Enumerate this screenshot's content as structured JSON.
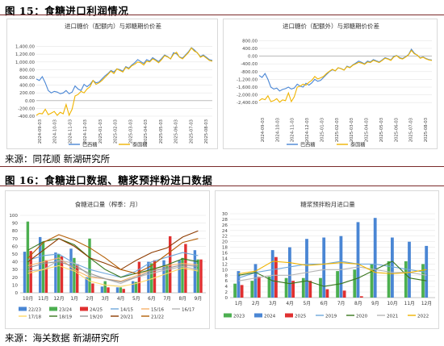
{
  "fig15": {
    "title": "图 15：食糖进口利润情况",
    "source": "来源：同花顺 新湖研究所"
  },
  "fig16": {
    "title": "图 16：食糖进口数据、糖浆预拌粉进口数据",
    "source": "来源：海关数据 新湖研究所"
  },
  "colors": {
    "rule": "#7a2a2a",
    "blue": "#4a86d4",
    "gold": "#f0b400",
    "grid": "#e6e6e6"
  },
  "chart_data": [
    {
      "id": "c1",
      "type": "line",
      "title": "进口糖价（配额内）与郑糖期价价差",
      "yticks": [
        "1,400.00",
        "1,200.00",
        "1,000.00",
        "800.00",
        "600.00",
        "400.00",
        "200.00",
        "0.00",
        "-200.00",
        "-400.00"
      ],
      "ylim": [
        -400,
        1600
      ],
      "xticks": [
        "2024-09-03",
        "2024-10-03",
        "2024-11-03",
        "2024-12-03",
        "2025-01-03",
        "2025-02-03",
        "2025-03-03",
        "2025-04-03",
        "2025-05-03",
        "2025-06-03",
        "2025-07-03",
        "2025-08-03"
      ],
      "series": [
        {
          "name": "巴西糖",
          "color": "#4a86d4",
          "values": [
            560,
            520,
            620,
            460,
            260,
            200,
            240,
            220,
            180,
            200,
            260,
            180,
            220,
            380,
            300,
            260,
            420,
            360,
            420,
            520,
            460,
            480,
            560,
            640,
            700,
            780,
            740,
            820,
            800,
            760,
            880,
            840,
            920,
            980,
            1060,
            1010,
            960,
            1060,
            1020,
            1110,
            1060,
            1010,
            1090,
            1180,
            1140,
            1080,
            1240,
            1210,
            1130,
            1100,
            1180,
            1260,
            1370,
            1310,
            1230,
            1140,
            1180,
            1120,
            1060,
            1040
          ]
        },
        {
          "name": "泰国糖",
          "color": "#f0b400",
          "values": [
            -380,
            -330,
            -340,
            -220,
            -360,
            -320,
            -280,
            -380,
            -300,
            -340,
            -100,
            -380,
            -220,
            120,
            160,
            240,
            200,
            300,
            360,
            520,
            420,
            460,
            520,
            600,
            680,
            760,
            700,
            820,
            780,
            740,
            860,
            820,
            900,
            940,
            1000,
            980,
            920,
            1020,
            1000,
            1080,
            1040,
            980,
            1060,
            1160,
            1130,
            1080,
            1200,
            1250,
            1120,
            1080,
            1160,
            1240,
            1360,
            1280,
            1240,
            1120,
            1160,
            1100,
            1040,
            1020
          ]
        }
      ]
    },
    {
      "id": "c2",
      "type": "line",
      "title": "进口糖价（配额外）与郑糖期价价差",
      "yticks": [
        "800.00",
        "400.00",
        "0.00",
        "-400.00",
        "-800.00",
        "-1,200.00",
        "-1,600.00",
        "-2,000.00",
        "-2,400.00"
      ],
      "ylim": [
        -2600,
        900
      ],
      "xticks": [
        "2024-09-03",
        "2024-10-03",
        "2024-11-03",
        "2024-12-03",
        "2025-01-03",
        "2025-02-03",
        "2025-03-03",
        "2025-04-03",
        "2025-05-03",
        "2025-06-03",
        "2025-07-03",
        "2025-08-03"
      ],
      "series": [
        {
          "name": "巴西糖",
          "color": "#4a86d4",
          "values": [
            -1000,
            -1100,
            -900,
            -1200,
            -1600,
            -1700,
            -1650,
            -1800,
            -1720,
            -1680,
            -1600,
            -1700,
            -1650,
            -1450,
            -1550,
            -1600,
            -1400,
            -1500,
            -1380,
            -1200,
            -1300,
            -1250,
            -1100,
            -950,
            -800,
            -700,
            -760,
            -600,
            -640,
            -720,
            -520,
            -580,
            -450,
            -360,
            -260,
            -320,
            -400,
            -260,
            -300,
            -180,
            -240,
            -300,
            -200,
            -80,
            -130,
            -200,
            -10,
            30,
            -80,
            -120,
            -30,
            80,
            360,
            160,
            40,
            -90,
            -40,
            -120,
            -180,
            -200
          ]
        },
        {
          "name": "泰国糖",
          "color": "#f0b400",
          "values": [
            -2300,
            -2200,
            -2250,
            -2050,
            -2350,
            -2300,
            -2200,
            -2380,
            -2260,
            -2300,
            -1900,
            -2350,
            -2100,
            -1600,
            -1550,
            -1450,
            -1500,
            -1350,
            -1250,
            -1050,
            -1180,
            -1120,
            -1050,
            -900,
            -780,
            -680,
            -760,
            -600,
            -650,
            -720,
            -540,
            -600,
            -470,
            -400,
            -320,
            -360,
            -430,
            -300,
            -330,
            -220,
            -270,
            -330,
            -230,
            -110,
            -150,
            -220,
            -40,
            20,
            -110,
            -150,
            -50,
            60,
            300,
            120,
            60,
            -110,
            -60,
            -140,
            -200,
            -220
          ]
        }
      ]
    },
    {
      "id": "c3",
      "type": "bar+line",
      "title": "食糖进口量（榨季：月）",
      "yticks": [
        "100",
        "90",
        "80",
        "70",
        "60",
        "50",
        "40",
        "30",
        "20",
        "10",
        "0"
      ],
      "ylim": [
        0,
        100
      ],
      "categories": [
        "10月",
        "11月",
        "12月",
        "1月",
        "2月",
        "3月",
        "4月",
        "5月",
        "6月",
        "7月",
        "8月",
        "9月"
      ],
      "bar_series": [
        {
          "name": "22/23",
          "color": "#4a86d4",
          "values": [
            53,
            72,
            52,
            57,
            20,
            8,
            7,
            15,
            40,
            42,
            42,
            55
          ]
        },
        {
          "name": "23/24",
          "color": "#4caf50",
          "values": [
            92,
            66,
            50,
            45,
            70,
            15,
            7,
            14,
            38,
            35,
            45,
            43
          ]
        },
        {
          "name": "24/25",
          "color": "#e03030",
          "values": [
            54,
            42,
            47,
            37,
            12,
            7,
            5,
            40,
            42,
            73,
            63,
            43
          ]
        }
      ],
      "line_series": [
        {
          "name": "14/15",
          "color": "#6fa8dc",
          "values": [
            42,
            48,
            50,
            38,
            30,
            25,
            20,
            28,
            40,
            46,
            52,
            48
          ]
        },
        {
          "name": "15/16",
          "color": "#f6b26b",
          "values": [
            35,
            40,
            45,
            30,
            20,
            18,
            15,
            22,
            30,
            35,
            38,
            36
          ]
        },
        {
          "name": "16/17",
          "color": "#b7b7b7",
          "values": [
            28,
            30,
            42,
            38,
            22,
            18,
            12,
            20,
            25,
            30,
            34,
            30
          ]
        },
        {
          "name": "17/18",
          "color": "#ffd966",
          "values": [
            25,
            30,
            35,
            28,
            15,
            10,
            8,
            12,
            18,
            25,
            32,
            28
          ]
        },
        {
          "name": "18/19",
          "color": "#38761d",
          "values": [
            55,
            66,
            70,
            62,
            45,
            30,
            20,
            25,
            30,
            36,
            44,
            40
          ]
        },
        {
          "name": "19/20",
          "color": "#999999",
          "values": [
            32,
            38,
            40,
            34,
            25,
            18,
            14,
            20,
            28,
            32,
            36,
            34
          ]
        },
        {
          "name": "20/21",
          "color": "#8e3b00",
          "values": [
            40,
            55,
            70,
            60,
            45,
            38,
            30,
            42,
            52,
            58,
            72,
            80
          ]
        },
        {
          "name": "21/22",
          "color": "#b45f06",
          "values": [
            45,
            65,
            75,
            68,
            58,
            45,
            30,
            25,
            35,
            50,
            65,
            70
          ]
        }
      ]
    },
    {
      "id": "c4",
      "type": "bar+line",
      "title": "糖浆预拌粉月进口量",
      "yticks": [
        "30",
        "28",
        "26",
        "24",
        "22",
        "20",
        "18",
        "16",
        "14",
        "12",
        "10",
        "8",
        "6",
        "4",
        "2",
        "0"
      ],
      "ylim": [
        0,
        30
      ],
      "categories": [
        "1月",
        "2月",
        "3月",
        "4月",
        "5月",
        "6月",
        "7月",
        "8月",
        "9月",
        "10月",
        "11月",
        "12月"
      ],
      "bar_series": [
        {
          "name": "2023",
          "color": "#4caf50",
          "values": [
            5,
            6,
            7.5,
            7,
            7,
            7,
            9.5,
            10,
            12,
            13,
            13,
            12
          ]
        },
        {
          "name": "2024",
          "color": "#4a86d4",
          "values": [
            9.5,
            12,
            17,
            18,
            21,
            21.5,
            22,
            27,
            28.5,
            21.5,
            20,
            18.5
          ]
        },
        {
          "name": "2025",
          "color": "#e03030",
          "values": [
            4.5,
            7.5,
            14.5,
            6,
            6,
            3,
            2.5,
            0.5,
            0,
            0,
            0,
            0
          ]
        }
      ],
      "line_series": [
        {
          "name": "2019",
          "color": "#6fa8dc",
          "values": [
            7,
            9,
            10,
            11,
            12,
            12,
            13,
            12,
            12,
            11,
            10,
            9
          ]
        },
        {
          "name": "2020",
          "color": "#38761d",
          "values": [
            8,
            9,
            6,
            5,
            6,
            4,
            5,
            7,
            10,
            13,
            7,
            6
          ]
        },
        {
          "name": "2021",
          "color": "#b7b7b7",
          "values": [
            6,
            7,
            8,
            8,
            9,
            10,
            10,
            11,
            10,
            9,
            9,
            8
          ]
        },
        {
          "name": "2022",
          "color": "#f0b400",
          "values": [
            8.5,
            9.5,
            13,
            12.5,
            11.5,
            12,
            12.5,
            12,
            9,
            8.5,
            9,
            10
          ]
        }
      ]
    }
  ]
}
